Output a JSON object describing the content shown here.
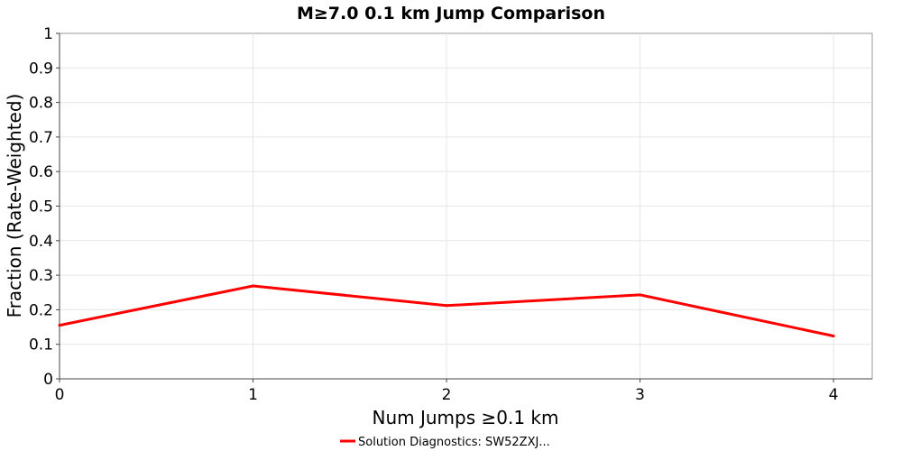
{
  "chart_data": {
    "type": "line",
    "title": "M≥7.0 0.1 km Jump Comparison",
    "xlabel": "Num Jumps ≥0.1 km",
    "ylabel": "Fraction (Rate-Weighted)",
    "xlim": [
      0,
      4.2
    ],
    "ylim": [
      0,
      1
    ],
    "x_ticks": [
      "0",
      "1",
      "2",
      "3",
      "4"
    ],
    "y_ticks": [
      "0",
      "0.1",
      "0.2",
      "0.3",
      "0.4",
      "0.5",
      "0.6",
      "0.7",
      "0.8",
      "0.9",
      "1"
    ],
    "grid": true,
    "legend_position": "bottom-center",
    "series": [
      {
        "name": "Solution Diagnostics: SW52ZXJ...",
        "color": "#ff0000",
        "x": [
          0,
          1,
          2,
          3,
          4
        ],
        "y": [
          0.155,
          0.269,
          0.212,
          0.243,
          0.124
        ]
      }
    ]
  }
}
